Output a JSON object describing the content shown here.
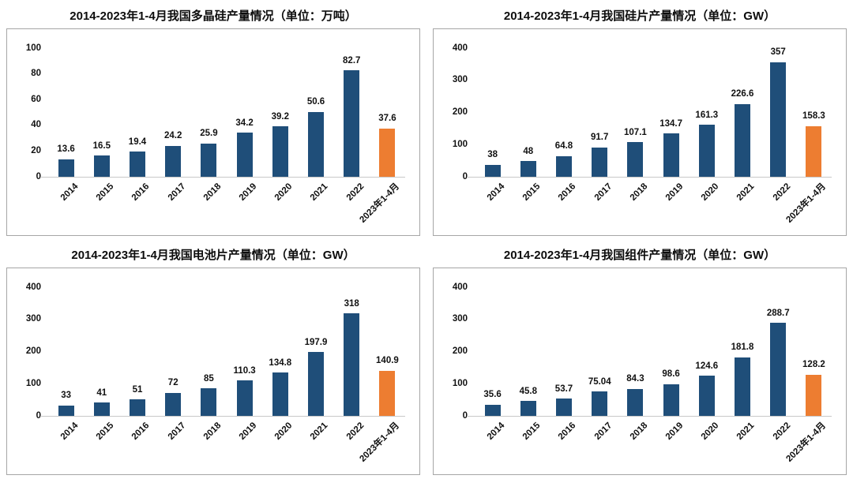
{
  "colors": {
    "bar": "#1f4e79",
    "highlight": "#ed7d31",
    "panel_border": "#a6a6a6",
    "axis_line": "#c8c8c8",
    "background": "#ffffff"
  },
  "chart_data": [
    {
      "type": "bar",
      "title": "2014-2023年1-4月我国多晶硅产量情况（单位：万吨）",
      "xlabel": "",
      "ylabel": "",
      "categories": [
        "2014",
        "2015",
        "2016",
        "2017",
        "2018",
        "2019",
        "2020",
        "2021",
        "2022",
        "2023年1-4月"
      ],
      "values": [
        13.6,
        16.5,
        19.4,
        24.2,
        25.9,
        34.2,
        39.2,
        50.6,
        82.7,
        37.6
      ],
      "value_labels": [
        "13.6",
        "16.5",
        "19.4",
        "24.2",
        "25.9",
        "34.2",
        "39.2",
        "50.6",
        "82.7",
        "37.6"
      ],
      "highlight_index": 9,
      "ylim": [
        0,
        100
      ],
      "yticks": [
        0,
        20,
        40,
        60,
        80,
        100
      ],
      "grid": false,
      "legend": null
    },
    {
      "type": "bar",
      "title": "2014-2023年1-4月我国硅片产量情况（单位：GW）",
      "xlabel": "",
      "ylabel": "",
      "categories": [
        "2014",
        "2015",
        "2016",
        "2017",
        "2018",
        "2019",
        "2020",
        "2021",
        "2022",
        "2023年1-4月"
      ],
      "values": [
        38,
        48,
        64.8,
        91.7,
        107.1,
        134.7,
        161.3,
        226.6,
        357,
        158.3
      ],
      "value_labels": [
        "38",
        "48",
        "64.8",
        "91.7",
        "107.1",
        "134.7",
        "161.3",
        "226.6",
        "357",
        "158.3"
      ],
      "highlight_index": 9,
      "ylim": [
        0,
        400
      ],
      "yticks": [
        0,
        100,
        200,
        300,
        400
      ],
      "grid": false,
      "legend": null
    },
    {
      "type": "bar",
      "title": "2014-2023年1-4月我国电池片产量情况（单位：GW）",
      "xlabel": "",
      "ylabel": "",
      "categories": [
        "2014",
        "2015",
        "2016",
        "2017",
        "2018",
        "2019",
        "2020",
        "2021",
        "2022",
        "2023年1-4月"
      ],
      "values": [
        33,
        41,
        51,
        72,
        85,
        110.3,
        134.8,
        197.9,
        318,
        140.9
      ],
      "value_labels": [
        "33",
        "41",
        "51",
        "72",
        "85",
        "110.3",
        "134.8",
        "197.9",
        "318",
        "140.9"
      ],
      "highlight_index": 9,
      "ylim": [
        0,
        400
      ],
      "yticks": [
        0,
        100,
        200,
        300,
        400
      ],
      "grid": false,
      "legend": null
    },
    {
      "type": "bar",
      "title": "2014-2023年1-4月我国组件产量情况（单位：GW）",
      "xlabel": "",
      "ylabel": "",
      "categories": [
        "2014",
        "2015",
        "2016",
        "2017",
        "2018",
        "2019",
        "2020",
        "2021",
        "2022",
        "2023年1-4月"
      ],
      "values": [
        35.6,
        45.8,
        53.7,
        75.04,
        84.3,
        98.6,
        124.6,
        181.8,
        288.7,
        128.2
      ],
      "value_labels": [
        "35.6",
        "45.8",
        "53.7",
        "75.04",
        "84.3",
        "98.6",
        "124.6",
        "181.8",
        "288.7",
        "128.2"
      ],
      "highlight_index": 9,
      "ylim": [
        0,
        400
      ],
      "yticks": [
        0,
        100,
        200,
        300,
        400
      ],
      "grid": false,
      "legend": null
    }
  ]
}
